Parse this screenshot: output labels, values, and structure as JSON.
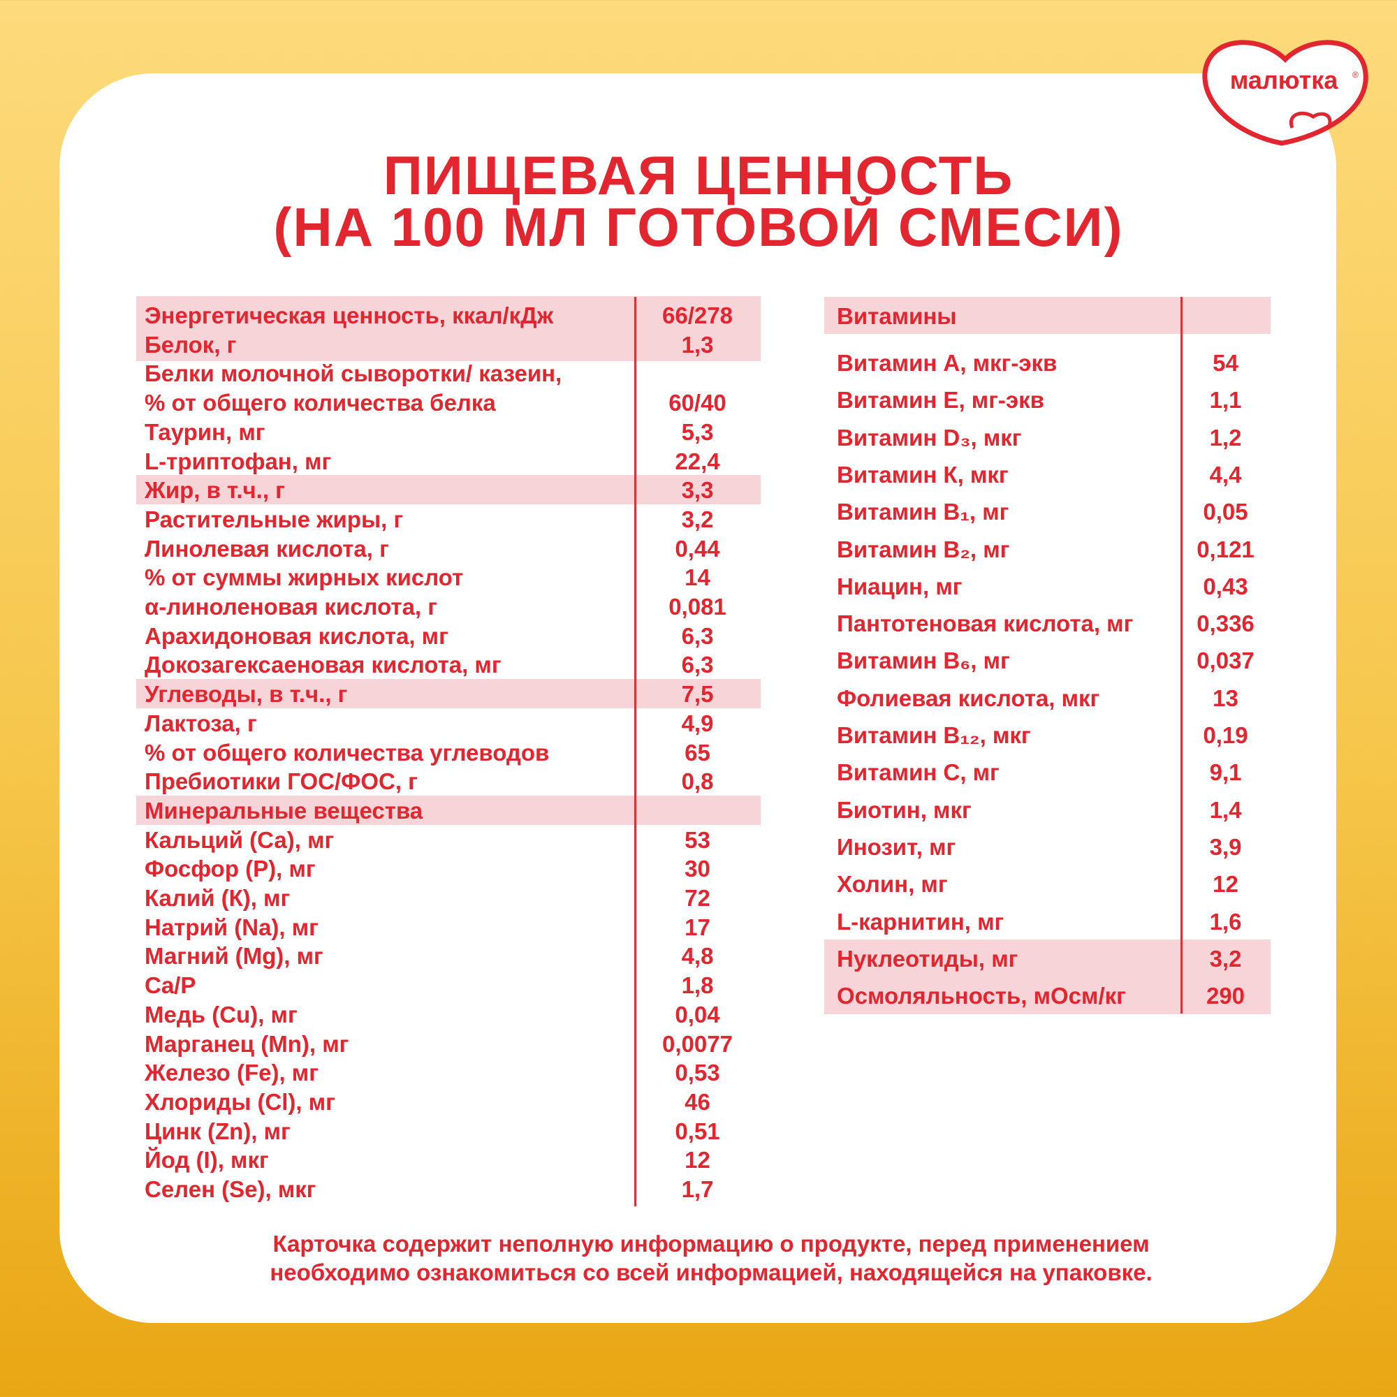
{
  "brand": {
    "logo_text": "малютка®",
    "color": "#E2262F"
  },
  "title": {
    "line1": "ПИЩЕВАЯ ЦЕННОСТЬ",
    "line2": "(НА 100 МЛ ГОТОВОЙ СМЕСИ)"
  },
  "left_table": {
    "rows": [
      {
        "label": "Энергетическая ценность, ккал/кДж",
        "value": "66/278",
        "highlight": true
      },
      {
        "label": "Белок, г",
        "value": "1,3",
        "highlight": true
      },
      {
        "label": "Белки молочной сыворотки/ казеин,",
        "value": ""
      },
      {
        "label": "% от общего количества белка",
        "value": "60/40"
      },
      {
        "label": "Таурин, мг",
        "value": "5,3"
      },
      {
        "label": "L-триптофан, мг",
        "value": "22,4"
      },
      {
        "label": "Жир, в т.ч., г",
        "value": "3,3",
        "highlight": true
      },
      {
        "label": "Растительные жиры, г",
        "value": "3,2"
      },
      {
        "label": "Линолевая кислота, г",
        "value": "0,44"
      },
      {
        "label": "% от суммы жирных кислот",
        "value": "14"
      },
      {
        "label": "α-линоленовая кислота, г",
        "value": "0,081"
      },
      {
        "label": "Арахидоновая кислота, мг",
        "value": "6,3"
      },
      {
        "label": "Докозагексаеновая кислота, мг",
        "value": "6,3"
      },
      {
        "label": "Углеводы, в т.ч., г",
        "value": "7,5",
        "highlight": true
      },
      {
        "label": "Лактоза, г",
        "value": "4,9"
      },
      {
        "label": "% от общего количества углеводов",
        "value": "65"
      },
      {
        "label": "Пребиотики ГОС/ФОС, г",
        "value": "0,8"
      },
      {
        "label": "Минеральные вещества",
        "value": "",
        "highlight": true
      },
      {
        "label": "Кальций (Са), мг",
        "value": "53"
      },
      {
        "label": "Фосфор (Р), мг",
        "value": "30"
      },
      {
        "label": "Калий (К), мг",
        "value": "72"
      },
      {
        "label": "Натрий (Na), мг",
        "value": "17"
      },
      {
        "label": "Магний (Mg), мг",
        "value": "4,8"
      },
      {
        "label": "Ca/P",
        "value": "1,8"
      },
      {
        "label": "Медь (Cu), мг",
        "value": "0,04"
      },
      {
        "label": "Марганец (Mn), мг",
        "value": "0,0077"
      },
      {
        "label": "Железо (Fe), мг",
        "value": "0,53"
      },
      {
        "label": "Хлориды (Cl), мг",
        "value": "46"
      },
      {
        "label": "Цинк (Zn), мг",
        "value": "0,51"
      },
      {
        "label": "Йод (I), мкг",
        "value": "12"
      },
      {
        "label": "Селен (Se), мкг",
        "value": "1,7"
      }
    ]
  },
  "right_table": {
    "header": "Витамины",
    "rows": [
      {
        "label": "Витамин А, мкг-экв",
        "value": "54"
      },
      {
        "label": "Витамин Е, мг-экв",
        "value": "1,1"
      },
      {
        "label": "Витамин D₃, мкг",
        "value": "1,2"
      },
      {
        "label": "Витамин К, мкг",
        "value": "4,4"
      },
      {
        "label": "Витамин В₁, мг",
        "value": "0,05"
      },
      {
        "label": "Витамин В₂, мг",
        "value": "0,121"
      },
      {
        "label": "Ниацин, мг",
        "value": "0,43"
      },
      {
        "label": "Пантотеновая кислота, мг",
        "value": "0,336"
      },
      {
        "label": "Витамин В₆, мг",
        "value": "0,037"
      },
      {
        "label": "Фолиевая кислота, мкг",
        "value": "13"
      },
      {
        "label": "Витамин В₁₂, мкг",
        "value": "0,19"
      },
      {
        "label": "Витамин С, мг",
        "value": "9,1"
      },
      {
        "label": "Биотин, мкг",
        "value": "1,4"
      },
      {
        "label": "Инозит, мг",
        "value": "3,9"
      },
      {
        "label": "Холин, мг",
        "value": "12"
      },
      {
        "label": "L-карнитин, мг",
        "value": "1,6"
      },
      {
        "label": "Нуклеотиды, мг",
        "value": "3,2",
        "highlight": true
      },
      {
        "label": "Осмоляльность, мОсм/кг",
        "value": "290",
        "highlight": true
      }
    ]
  },
  "footer": {
    "line1": "Карточка содержит неполную информацию о продукте, перед применением",
    "line2": "необходимо ознакомиться со всей информацией, находящейся на упаковке."
  }
}
